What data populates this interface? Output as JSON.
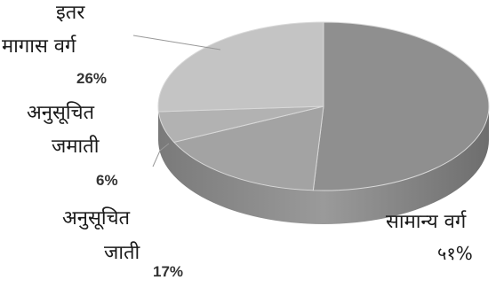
{
  "chart_data": {
    "type": "pie",
    "style": "3d",
    "slices": [
      {
        "name": "सामान्य वर्ग",
        "value": 51,
        "value_label": "५१%",
        "color": "#8f8f8f"
      },
      {
        "name": "अनुसूचित जाती",
        "value": 17,
        "value_label": "17%",
        "color": "#a3a3a3"
      },
      {
        "name": "अनुसूचित जमाती",
        "value": 6,
        "value_label": "6%",
        "color": "#b2b2b2"
      },
      {
        "name": "इतर मागास वर्ग",
        "value": 26,
        "value_label": "26%",
        "color": "#c4c4c4"
      }
    ],
    "labels": {
      "obc_line1": "इतर",
      "obc_line2": "मागास वर्ग",
      "st_line1": "अनुसूचित",
      "st_line2": "जमाती",
      "sc_line1": "अनुसूचित",
      "sc_line2": "जाती",
      "general": "सामान्य वर्ग"
    }
  }
}
